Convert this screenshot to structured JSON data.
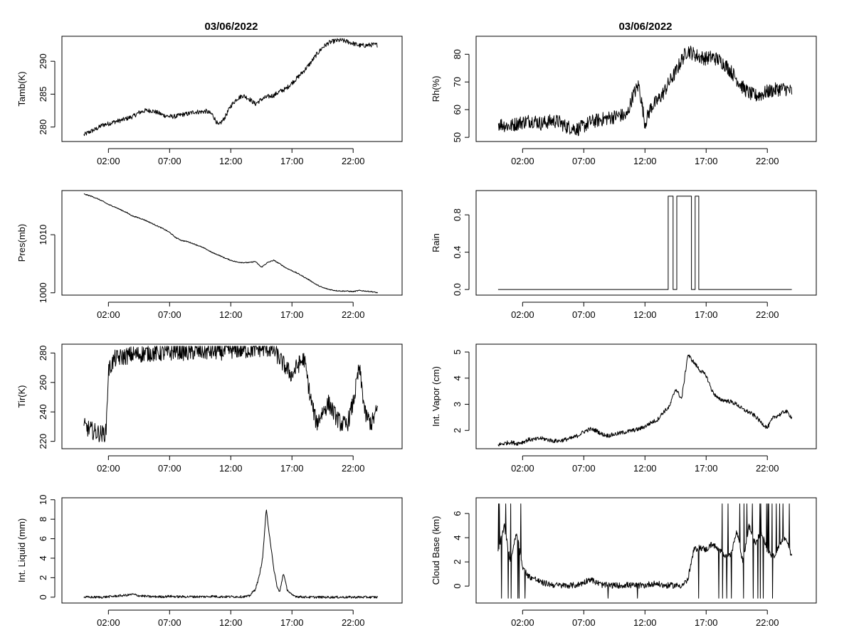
{
  "figure": {
    "titles": [
      "03/06/2022",
      "03/06/2022"
    ],
    "x_ticks": [
      "02:00",
      "07:00",
      "12:00",
      "17:00",
      "22:00"
    ]
  },
  "chart_data": [
    {
      "type": "line",
      "ylabel": "Tamb(K)",
      "xlabel": "",
      "xlim": [
        -1.8,
        26
      ],
      "ylim": [
        277.8,
        293.8
      ],
      "yticks": [
        280,
        285,
        290
      ],
      "series": [
        {
          "x": [
            0,
            0.5,
            1,
            1.5,
            2,
            2.5,
            3,
            3.5,
            4,
            4.5,
            5,
            5.5,
            6,
            6.5,
            7,
            7.5,
            8,
            8.5,
            9,
            9.5,
            10,
            10.5,
            11,
            11.5,
            12,
            12.5,
            13,
            13.5,
            14,
            14.5,
            15,
            15.5,
            16,
            16.5,
            17,
            17.5,
            18,
            18.5,
            19,
            19.5,
            20,
            20.5,
            21,
            21.5,
            22,
            22.5,
            23,
            23.5,
            24
          ],
          "y": [
            278.8,
            279.3,
            279.7,
            280.3,
            280.5,
            280.8,
            281.0,
            281.3,
            281.6,
            282.2,
            282.5,
            282.5,
            282.2,
            281.8,
            281.6,
            281.6,
            281.9,
            282.0,
            282.3,
            282.3,
            282.4,
            281.9,
            280.2,
            281.4,
            283.2,
            284.3,
            284.8,
            284.3,
            283.5,
            284.2,
            284.6,
            284.8,
            285.4,
            285.8,
            286.7,
            287.6,
            288.6,
            289.7,
            291.0,
            292.1,
            292.8,
            293.1,
            293.2,
            293.0,
            292.7,
            292.4,
            292.4,
            292.5,
            292.5
          ],
          "noise": 0.35
        }
      ]
    },
    {
      "type": "line",
      "ylabel": "Rh(%)",
      "xlabel": "",
      "xlim": [
        -1.8,
        26
      ],
      "ylim": [
        48.5,
        86.5
      ],
      "yticks": [
        50,
        60,
        70,
        80
      ],
      "series": [
        {
          "x": [
            0,
            0.5,
            1,
            1.5,
            2,
            2.5,
            3,
            3.5,
            4,
            4.5,
            5,
            5.5,
            6,
            6.5,
            7,
            7.5,
            8,
            8.5,
            9,
            9.5,
            10,
            10.5,
            11,
            11.5,
            12,
            12.5,
            13,
            13.5,
            14,
            14.5,
            15,
            15.5,
            16,
            16.5,
            17,
            17.5,
            18,
            18.5,
            19,
            19.5,
            20,
            20.5,
            21,
            21.5,
            22,
            22.5,
            23,
            23.5,
            24
          ],
          "y": [
            55.0,
            54.5,
            54.0,
            55.0,
            55.5,
            56.0,
            56.0,
            55.0,
            55.5,
            56.0,
            55.5,
            54.0,
            53.5,
            53.0,
            54.0,
            55.5,
            56.0,
            56.5,
            57.0,
            57.5,
            58.0,
            57.5,
            65.0,
            69.0,
            55.0,
            61.0,
            63.0,
            66.0,
            70.0,
            73.5,
            78.0,
            81.5,
            80.0,
            79.0,
            78.5,
            79.0,
            78.0,
            76.5,
            74.0,
            71.0,
            68.0,
            66.0,
            65.0,
            65.5,
            66.5,
            67.0,
            67.5,
            67.5,
            66.5
          ],
          "noise": 2.6
        }
      ]
    },
    {
      "type": "line",
      "ylabel": "Pres(mb)",
      "xlabel": "",
      "xlim": [
        -1.8,
        26
      ],
      "ylim": [
        999.6,
        1017.6
      ],
      "yticks": [
        1000,
        1010
      ],
      "series": [
        {
          "x": [
            0,
            0.5,
            1,
            1.5,
            2,
            2.5,
            3,
            3.5,
            4,
            4.5,
            5,
            5.5,
            6,
            6.5,
            7,
            7.5,
            8,
            8.5,
            9,
            9.5,
            10,
            10.5,
            11,
            11.5,
            12,
            12.5,
            13,
            13.5,
            14,
            14.5,
            15,
            15.5,
            16,
            16.5,
            17,
            17.5,
            18,
            18.5,
            19,
            19.5,
            20,
            20.5,
            21,
            21.5,
            22,
            22.5,
            23,
            23.5,
            24
          ],
          "y": [
            1017.0,
            1016.7,
            1016.3,
            1015.8,
            1015.2,
            1014.8,
            1014.3,
            1013.8,
            1013.2,
            1012.9,
            1012.5,
            1012.0,
            1011.5,
            1011.0,
            1010.4,
            1009.5,
            1009.0,
            1008.8,
            1008.4,
            1008.0,
            1007.5,
            1006.9,
            1006.5,
            1006.0,
            1005.6,
            1005.3,
            1005.2,
            1005.2,
            1005.4,
            1004.4,
            1005.2,
            1005.6,
            1005.0,
            1004.3,
            1003.8,
            1003.3,
            1002.7,
            1002.1,
            1001.4,
            1000.9,
            1000.6,
            1000.4,
            1000.3,
            1000.3,
            1000.2,
            1000.4,
            1000.3,
            1000.2,
            1000.0
          ],
          "noise": 0.08
        }
      ]
    },
    {
      "type": "line",
      "ylabel": "Rain",
      "xlabel": "",
      "xlim": [
        -1.8,
        26
      ],
      "ylim": [
        -0.06,
        1.06
      ],
      "yticks": [
        0.0,
        0.4,
        0.8
      ],
      "series": [
        {
          "x": [
            0,
            13.9,
            13.9,
            14.3,
            14.3,
            14.6,
            14.6,
            15.8,
            15.8,
            16.1,
            16.1,
            16.4,
            16.4,
            24
          ],
          "y": [
            0,
            0,
            1,
            1,
            0,
            0,
            1,
            1,
            0,
            0,
            1,
            1,
            0,
            0
          ],
          "noise": 0
        }
      ]
    },
    {
      "type": "line",
      "ylabel": "Tir(K)",
      "xlabel": "",
      "xlim": [
        -1.8,
        26
      ],
      "ylim": [
        215,
        286
      ],
      "yticks": [
        220,
        240,
        260,
        280
      ],
      "series": [
        {
          "x": [
            0,
            0.5,
            1,
            1.5,
            1.8,
            2,
            2.5,
            3,
            3.5,
            4,
            4.5,
            5,
            5.5,
            6,
            6.5,
            7,
            7.5,
            8,
            8.5,
            9,
            9.5,
            10,
            10.5,
            11,
            11.5,
            12,
            12.5,
            13,
            13.5,
            14,
            14.5,
            15,
            15.5,
            16,
            16.5,
            17,
            17.5,
            18,
            18.5,
            19,
            19.5,
            20,
            20.5,
            21,
            21.5,
            22,
            22.5,
            23,
            23.5,
            24
          ],
          "y": [
            230,
            228,
            226,
            225,
            226,
            268,
            276,
            277,
            278,
            279,
            279,
            280,
            280,
            280,
            280,
            280,
            282,
            281,
            280,
            281,
            281,
            281,
            281,
            281,
            281,
            282,
            282,
            282,
            282,
            283,
            283,
            283,
            282,
            276,
            270,
            265,
            272,
            276,
            250,
            232,
            240,
            246,
            238,
            232,
            231,
            246,
            270,
            238,
            232,
            242
          ],
          "noise": 6
        }
      ]
    },
    {
      "type": "line",
      "ylabel": "Int. Vapor (cm)",
      "xlabel": "",
      "xlim": [
        -1.8,
        26
      ],
      "ylim": [
        1.3,
        5.3
      ],
      "yticks": [
        2,
        3,
        4,
        5
      ],
      "series": [
        {
          "x": [
            0,
            0.5,
            1,
            1.5,
            2,
            2.5,
            3,
            3.5,
            4,
            4.5,
            5,
            5.5,
            6,
            6.5,
            7,
            7.5,
            8,
            8.5,
            9,
            9.5,
            10,
            10.5,
            11,
            11.5,
            12,
            12.5,
            13,
            13.5,
            14,
            14.5,
            15,
            15.5,
            16,
            16.5,
            17,
            17.5,
            18,
            18.5,
            19,
            19.5,
            20,
            20.5,
            21,
            21.5,
            22,
            22.5,
            23,
            23.5,
            24
          ],
          "y": [
            1.45,
            1.5,
            1.55,
            1.5,
            1.55,
            1.65,
            1.65,
            1.7,
            1.65,
            1.6,
            1.6,
            1.65,
            1.7,
            1.8,
            1.95,
            2.05,
            2.0,
            1.85,
            1.8,
            1.85,
            1.9,
            1.95,
            2.0,
            2.05,
            2.15,
            2.3,
            2.4,
            2.7,
            2.9,
            3.6,
            3.2,
            4.9,
            4.6,
            4.3,
            4.1,
            3.5,
            3.2,
            3.15,
            3.1,
            3.0,
            2.8,
            2.7,
            2.55,
            2.3,
            2.1,
            2.5,
            2.6,
            2.75,
            2.5
          ],
          "noise": 0.08
        }
      ]
    },
    {
      "type": "line",
      "ylabel": "Int. Liquid (mm)",
      "xlabel": "",
      "xlim": [
        -1.8,
        26
      ],
      "ylim": [
        -0.6,
        10.2
      ],
      "yticks": [
        0,
        2,
        4,
        6,
        8,
        10
      ],
      "series": [
        {
          "x": [
            0,
            0.5,
            1,
            1.5,
            2,
            2.5,
            3,
            3.5,
            4,
            4.5,
            5,
            5.5,
            6,
            6.5,
            7,
            7.5,
            8,
            8.5,
            9,
            9.5,
            10,
            10.5,
            11,
            11.5,
            12,
            12.5,
            13,
            13.5,
            14,
            14.3,
            14.6,
            14.9,
            15.2,
            15.5,
            15.8,
            16,
            16.3,
            16.6,
            17,
            17.5,
            18,
            18.5,
            19,
            19.5,
            20,
            20.5,
            21,
            21.5,
            22,
            22.5,
            23,
            23.5,
            24
          ],
          "y": [
            0,
            0,
            0,
            0,
            0.05,
            0.1,
            0.15,
            0.2,
            0.3,
            0.15,
            0.1,
            0.05,
            0.05,
            0.05,
            0.1,
            0.05,
            0.05,
            0.05,
            0.05,
            0.05,
            0.05,
            0.1,
            0.05,
            0.05,
            0.05,
            0.05,
            0.05,
            0.1,
            0.8,
            2.0,
            4.0,
            9.0,
            6.0,
            3.0,
            1.0,
            0.5,
            2.5,
            0.8,
            0.2,
            0.05,
            0.02,
            0,
            0,
            0,
            0,
            0,
            0,
            0,
            0,
            0,
            0,
            0,
            0
          ],
          "noise": 0.12
        }
      ]
    },
    {
      "type": "line",
      "ylabel": "Cloud Base (km)",
      "xlabel": "",
      "xlim": [
        -1.8,
        26
      ],
      "ylim": [
        -1.4,
        7.3
      ],
      "yticks": [
        0,
        2,
        4,
        6
      ],
      "series": [
        {
          "x": [
            0,
            0.5,
            1,
            1.5,
            2,
            2.5,
            3,
            3.5,
            4,
            4.5,
            5,
            5.5,
            6,
            6.5,
            7,
            7.5,
            8,
            8.5,
            9,
            9.5,
            10,
            10.5,
            11,
            11.5,
            12,
            12.5,
            13,
            13.5,
            14,
            14.5,
            15,
            15.5,
            16,
            16.5,
            17,
            17.5,
            18,
            18.5,
            19,
            19.5,
            20,
            20.5,
            21,
            21.5,
            22,
            22.5,
            23,
            23.5,
            24
          ],
          "y": [
            3.0,
            5.0,
            2.0,
            4.5,
            1.5,
            0.8,
            0.6,
            0.3,
            0.2,
            0.1,
            0.05,
            0.05,
            0.05,
            0.1,
            0.3,
            0.6,
            0.3,
            0.1,
            0.05,
            0.05,
            0.05,
            0.1,
            0.05,
            0.05,
            0.05,
            0.2,
            0.2,
            0.05,
            0.05,
            0.05,
            0.05,
            0.5,
            3.0,
            3.2,
            3.0,
            3.5,
            3.0,
            2.6,
            2.5,
            4.5,
            2.0,
            5.0,
            3.5,
            4.5,
            3.0,
            2.4,
            3.5,
            4.0,
            2.5
          ],
          "noise": 0.25,
          "spikes": true
        }
      ]
    }
  ]
}
